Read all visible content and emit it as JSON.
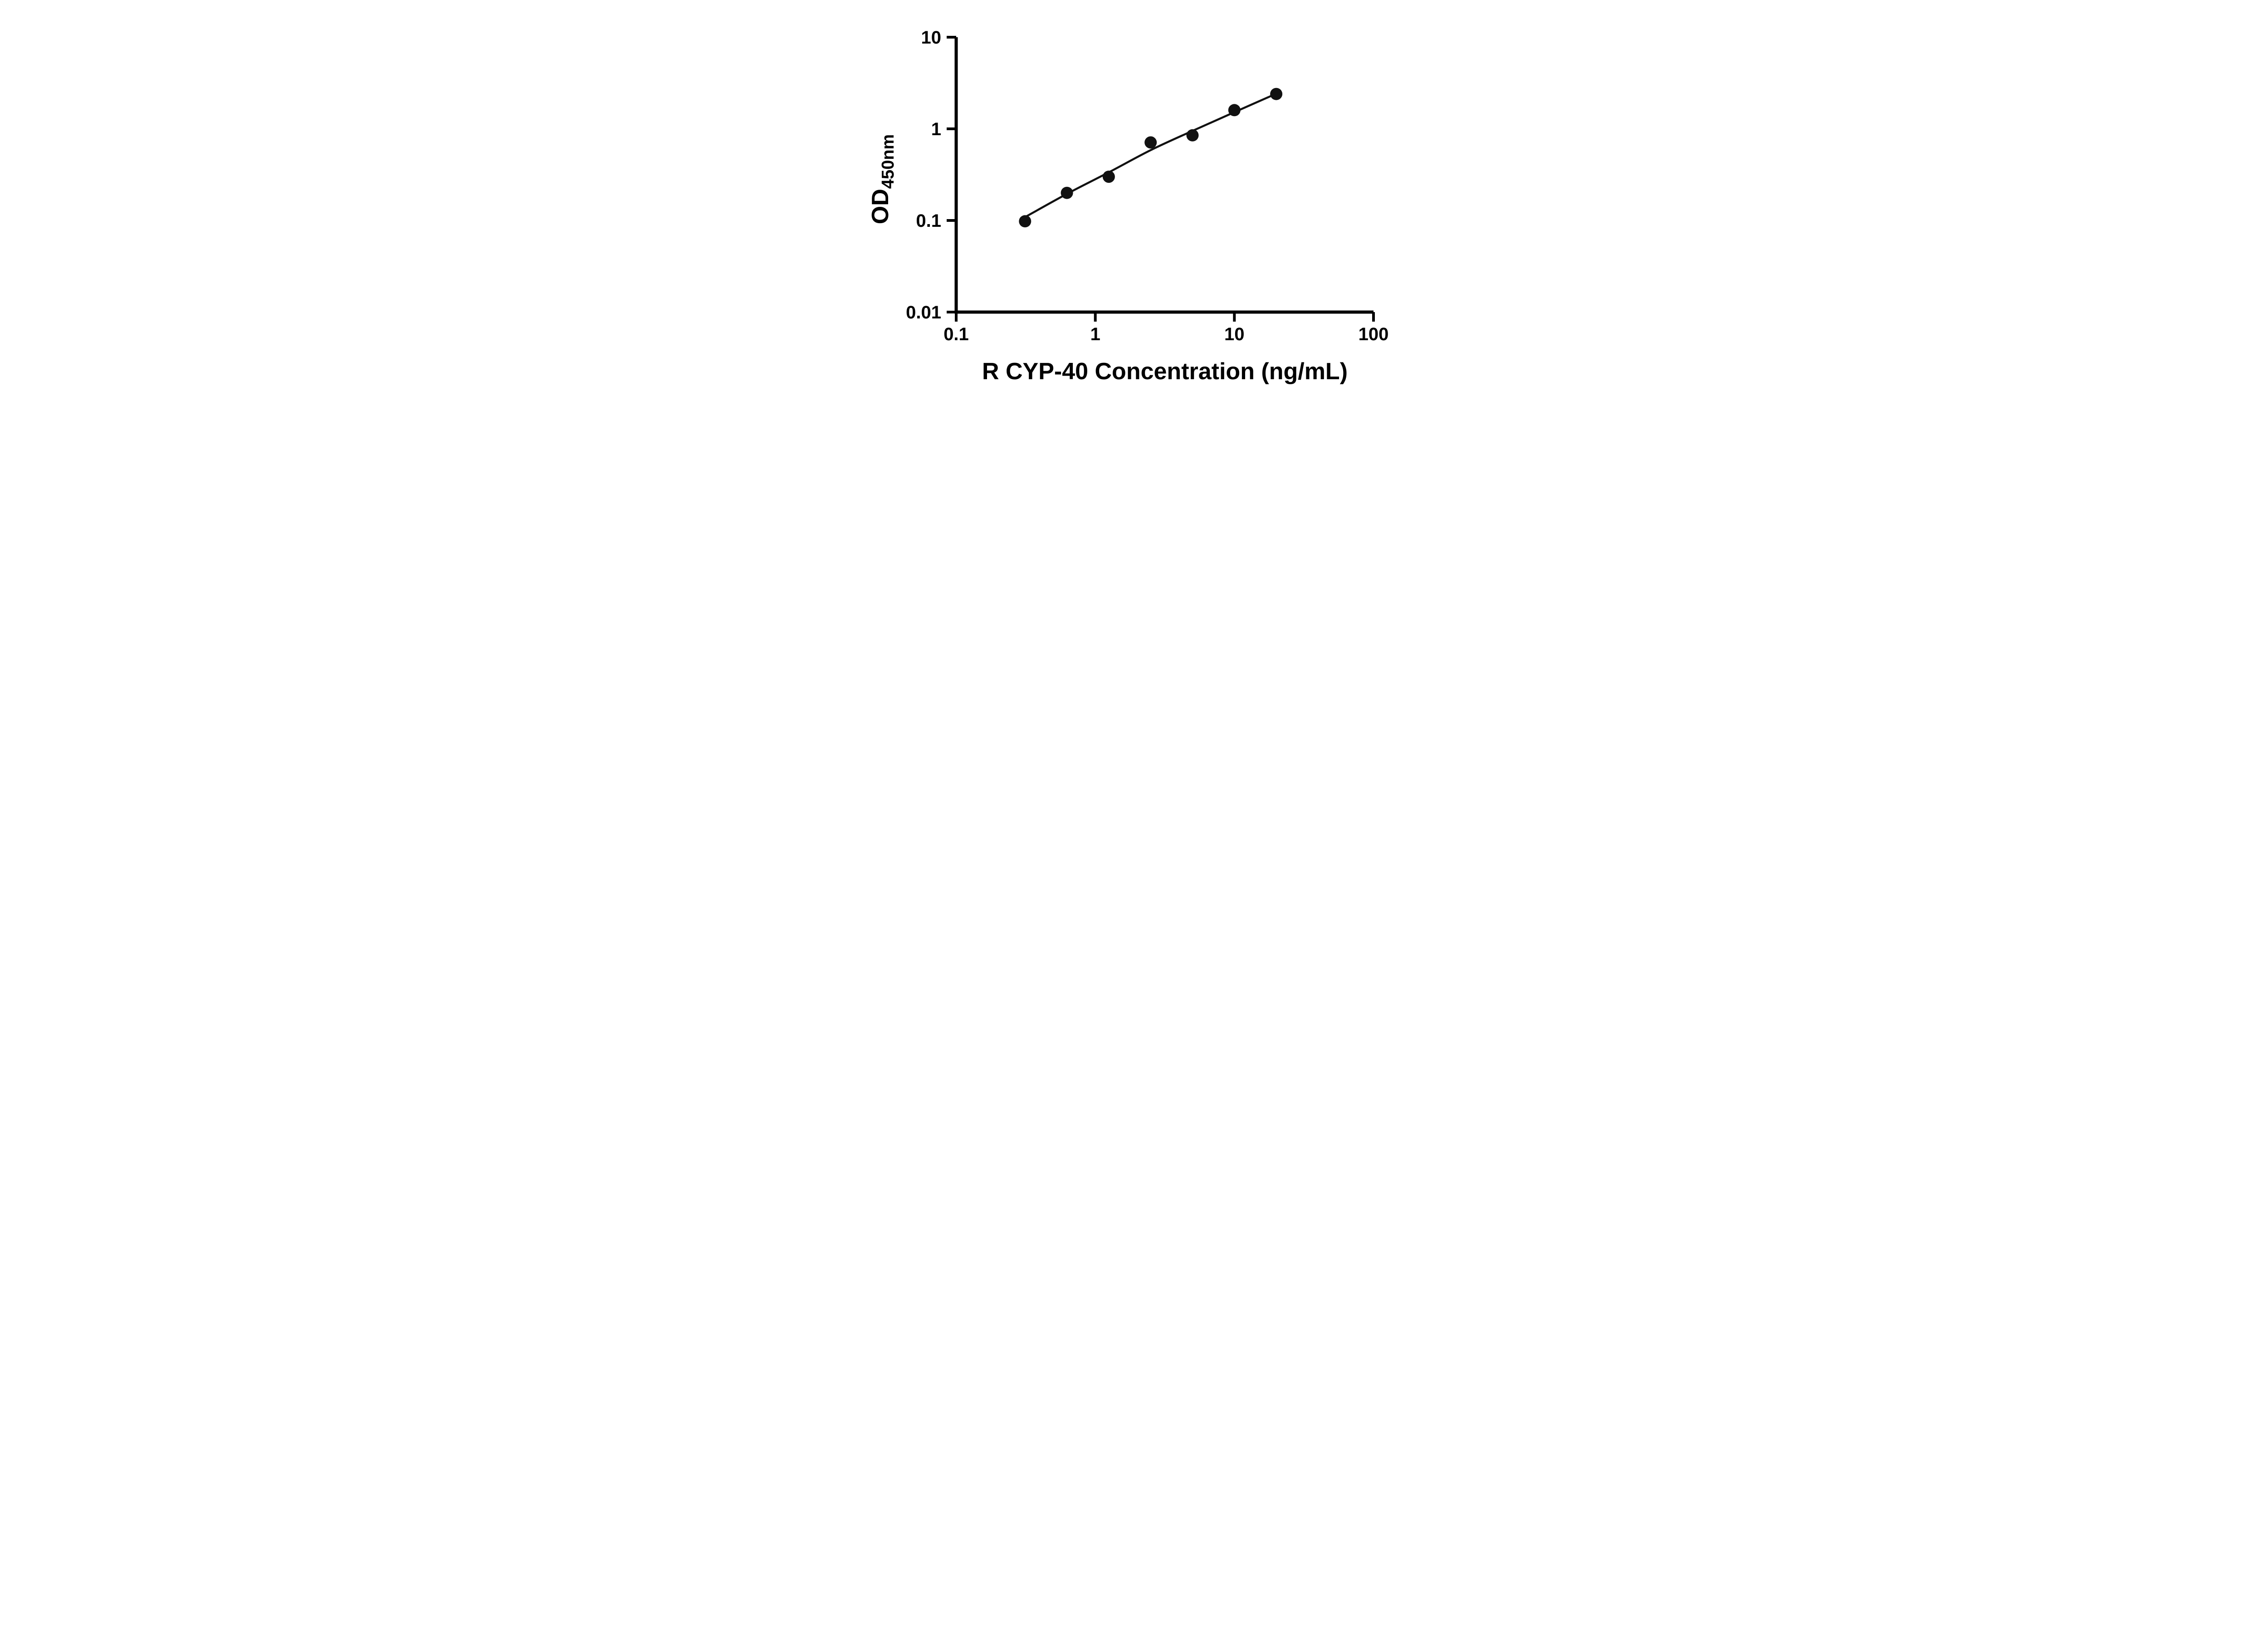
{
  "chart_data": {
    "type": "scatter",
    "title": "",
    "xlabel": "R CYP-40 Concentration (ng/mL)",
    "ylabel_main": "OD",
    "ylabel_sub": "450nm",
    "x_scale": "log",
    "y_scale": "log",
    "xlim": [
      0.1,
      100
    ],
    "ylim": [
      0.01,
      10
    ],
    "x_ticks": [
      0.1,
      1,
      10,
      100
    ],
    "x_tick_labels": [
      "0.1",
      "1",
      "10",
      "100"
    ],
    "y_ticks": [
      0.01,
      0.1,
      1,
      10
    ],
    "y_tick_labels": [
      "0.01",
      "0.1",
      "1",
      "10"
    ],
    "grid": false,
    "legend": null,
    "points": [
      {
        "x": 0.3125,
        "y": 0.098
      },
      {
        "x": 0.625,
        "y": 0.2
      },
      {
        "x": 1.25,
        "y": 0.3
      },
      {
        "x": 2.5,
        "y": 0.71
      },
      {
        "x": 5,
        "y": 0.85
      },
      {
        "x": 10,
        "y": 1.6
      },
      {
        "x": 20,
        "y": 2.4
      }
    ],
    "fit_curve": [
      {
        "x": 0.3,
        "y": 0.105
      },
      {
        "x": 0.625,
        "y": 0.195
      },
      {
        "x": 1.25,
        "y": 0.335
      },
      {
        "x": 2.5,
        "y": 0.585
      },
      {
        "x": 5,
        "y": 0.95
      },
      {
        "x": 10,
        "y": 1.52
      },
      {
        "x": 20,
        "y": 2.42
      }
    ],
    "colors": {
      "axis": "#000000",
      "point": "#111111",
      "curve": "#111111",
      "background": "#ffffff"
    }
  }
}
